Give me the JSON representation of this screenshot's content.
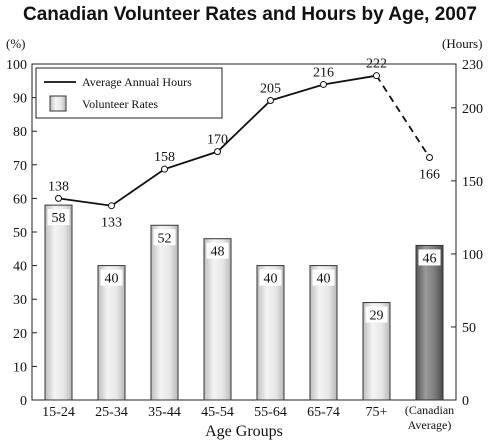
{
  "chart_data": {
    "type": "bar",
    "title": "Canadian Volunteer Rates and Hours by Age, 2007",
    "xlabel": "Age Groups",
    "y_left_unit": "(%)",
    "y_right_unit": "(Hours)",
    "y_left_lim": [
      0,
      100
    ],
    "y_right_lim": [
      0,
      230
    ],
    "y_left_ticks": [
      "0",
      "10",
      "20",
      "30",
      "40",
      "50",
      "60",
      "70",
      "80",
      "90",
      "100"
    ],
    "y_right_ticks": [
      "0",
      "50",
      "100",
      "150",
      "200",
      "230"
    ],
    "categories": [
      [
        "15-24"
      ],
      [
        "25-34"
      ],
      [
        "35-44"
      ],
      [
        "45-54"
      ],
      [
        "55-64"
      ],
      [
        "65-74"
      ],
      [
        "75+"
      ],
      [
        "(Canadian",
        "Average)"
      ]
    ],
    "grid": false,
    "legend_position": "top-left",
    "series": [
      {
        "name": "Volunteer Rates",
        "type": "bar",
        "axis": "left",
        "values": [
          58,
          40,
          52,
          48,
          40,
          40,
          29,
          46
        ],
        "value_labels": [
          "58",
          "40",
          "52",
          "48",
          "40",
          "40",
          "29",
          "46"
        ],
        "color": "#e8e8e8",
        "highlight_color": "#7a7a7a"
      },
      {
        "name": "Average Annual Hours",
        "type": "line",
        "axis": "right",
        "values": [
          138,
          133,
          158,
          170,
          205,
          216,
          222,
          166
        ],
        "value_labels": [
          "138",
          "133",
          "158",
          "170",
          "205",
          "216",
          "222",
          "166"
        ],
        "color": "#111111",
        "dashed_last_segment": true
      }
    ]
  }
}
